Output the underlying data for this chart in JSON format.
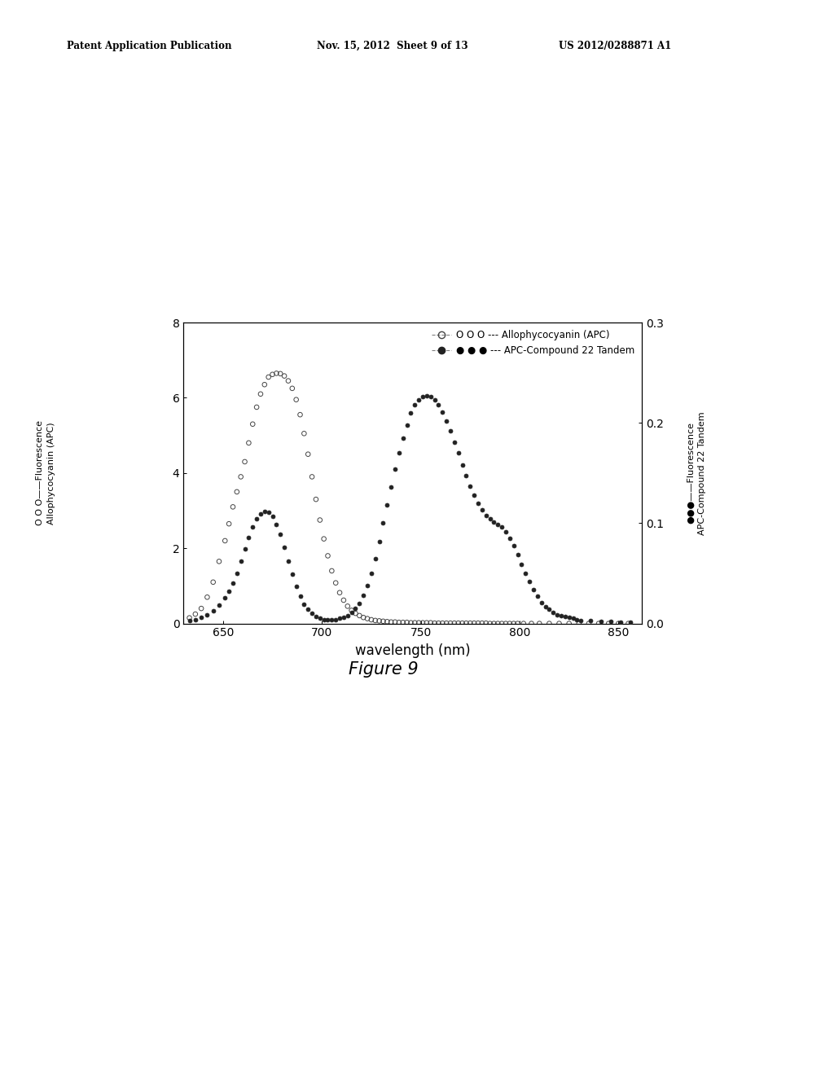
{
  "xlabel": "wavelength (nm)",
  "xlim": [
    630,
    862
  ],
  "ylim_left": [
    0,
    8
  ],
  "ylim_right": [
    0.0,
    0.3
  ],
  "xticks": [
    650,
    700,
    750,
    800,
    850
  ],
  "yticks_left": [
    0,
    2,
    4,
    6,
    8
  ],
  "yticks_right": [
    0.0,
    0.1,
    0.2,
    0.3
  ],
  "apc_x": [
    633,
    636,
    639,
    642,
    645,
    648,
    651,
    653,
    655,
    657,
    659,
    661,
    663,
    665,
    667,
    669,
    671,
    673,
    675,
    677,
    679,
    681,
    683,
    685,
    687,
    689,
    691,
    693,
    695,
    697,
    699,
    701,
    703,
    705,
    707,
    709,
    711,
    713,
    715,
    717,
    719,
    721,
    723,
    725,
    727,
    729,
    731,
    733,
    735,
    737,
    739,
    741,
    743,
    745,
    747,
    749,
    751,
    753,
    755,
    757,
    759,
    761,
    763,
    765,
    767,
    769,
    771,
    773,
    775,
    777,
    779,
    781,
    783,
    785,
    787,
    789,
    791,
    793,
    795,
    797,
    799,
    802,
    806,
    810,
    815,
    820,
    825,
    830,
    835,
    840,
    845,
    850,
    855
  ],
  "apc_y": [
    0.15,
    0.25,
    0.4,
    0.7,
    1.1,
    1.65,
    2.2,
    2.65,
    3.1,
    3.5,
    3.9,
    4.3,
    4.8,
    5.3,
    5.75,
    6.1,
    6.35,
    6.55,
    6.62,
    6.65,
    6.64,
    6.58,
    6.45,
    6.25,
    5.95,
    5.55,
    5.05,
    4.5,
    3.9,
    3.3,
    2.75,
    2.25,
    1.8,
    1.4,
    1.08,
    0.82,
    0.62,
    0.46,
    0.35,
    0.27,
    0.21,
    0.16,
    0.13,
    0.1,
    0.08,
    0.07,
    0.06,
    0.05,
    0.04,
    0.04,
    0.03,
    0.03,
    0.03,
    0.02,
    0.02,
    0.02,
    0.02,
    0.02,
    0.02,
    0.01,
    0.01,
    0.01,
    0.01,
    0.01,
    0.01,
    0.01,
    0.01,
    0.01,
    0.01,
    0.01,
    0.01,
    0.01,
    0.01,
    0.0,
    0.0,
    0.0,
    0.0,
    0.0,
    0.0,
    0.0,
    0.0,
    0.0,
    0.0,
    0.0,
    0.0,
    0.0,
    0.0,
    0.0,
    0.0,
    0.0,
    0.0,
    0.0,
    0.0
  ],
  "tandem_x": [
    633,
    636,
    639,
    642,
    645,
    648,
    651,
    653,
    655,
    657,
    659,
    661,
    663,
    665,
    667,
    669,
    671,
    673,
    675,
    677,
    679,
    681,
    683,
    685,
    687,
    689,
    691,
    693,
    695,
    697,
    699,
    701,
    703,
    705,
    707,
    709,
    711,
    713,
    715,
    717,
    719,
    721,
    723,
    725,
    727,
    729,
    731,
    733,
    735,
    737,
    739,
    741,
    743,
    745,
    747,
    749,
    751,
    753,
    755,
    757,
    759,
    761,
    763,
    765,
    767,
    769,
    771,
    773,
    775,
    777,
    779,
    781,
    783,
    785,
    787,
    789,
    791,
    793,
    795,
    797,
    799,
    801,
    803,
    805,
    807,
    809,
    811,
    813,
    815,
    817,
    819,
    821,
    823,
    825,
    827,
    829,
    831,
    836,
    841,
    846,
    851,
    856
  ],
  "tandem_y": [
    0.003,
    0.004,
    0.006,
    0.009,
    0.013,
    0.018,
    0.026,
    0.032,
    0.04,
    0.05,
    0.062,
    0.074,
    0.086,
    0.096,
    0.104,
    0.109,
    0.112,
    0.111,
    0.107,
    0.099,
    0.089,
    0.076,
    0.062,
    0.049,
    0.037,
    0.027,
    0.019,
    0.014,
    0.01,
    0.007,
    0.005,
    0.004,
    0.004,
    0.004,
    0.004,
    0.005,
    0.006,
    0.008,
    0.011,
    0.015,
    0.02,
    0.028,
    0.038,
    0.05,
    0.065,
    0.082,
    0.1,
    0.118,
    0.136,
    0.154,
    0.17,
    0.185,
    0.198,
    0.21,
    0.218,
    0.223,
    0.226,
    0.227,
    0.226,
    0.223,
    0.218,
    0.211,
    0.202,
    0.192,
    0.181,
    0.17,
    0.158,
    0.147,
    0.137,
    0.128,
    0.12,
    0.113,
    0.108,
    0.104,
    0.101,
    0.099,
    0.096,
    0.091,
    0.085,
    0.078,
    0.069,
    0.059,
    0.05,
    0.042,
    0.034,
    0.027,
    0.021,
    0.017,
    0.014,
    0.011,
    0.009,
    0.008,
    0.007,
    0.006,
    0.005,
    0.004,
    0.003,
    0.003,
    0.002,
    0.002,
    0.001,
    0.001
  ],
  "bg_color": "#ffffff",
  "plot_bg_color": "#ffffff",
  "apc_color": "#444444",
  "tandem_color": "#222222",
  "header_left": "Patent Application Publication",
  "header_mid": "Nov. 15, 2012  Sheet 9 of 13",
  "header_right": "US 2012/0288871 A1",
  "figure_label": "Figure 9",
  "legend_apc": "O O O --- Allophycocyanin (APC)",
  "legend_tandem": "● ● ● --- APC-Compound 22 Tandem",
  "ylabel_left_line1": "O O O——Fluorescence",
  "ylabel_left_line2": "Allophycocyanin (APC)",
  "ylabel_right_line1": "●●●——Fluorescence",
  "ylabel_right_line2": "APC-Compound 22 Tandem"
}
